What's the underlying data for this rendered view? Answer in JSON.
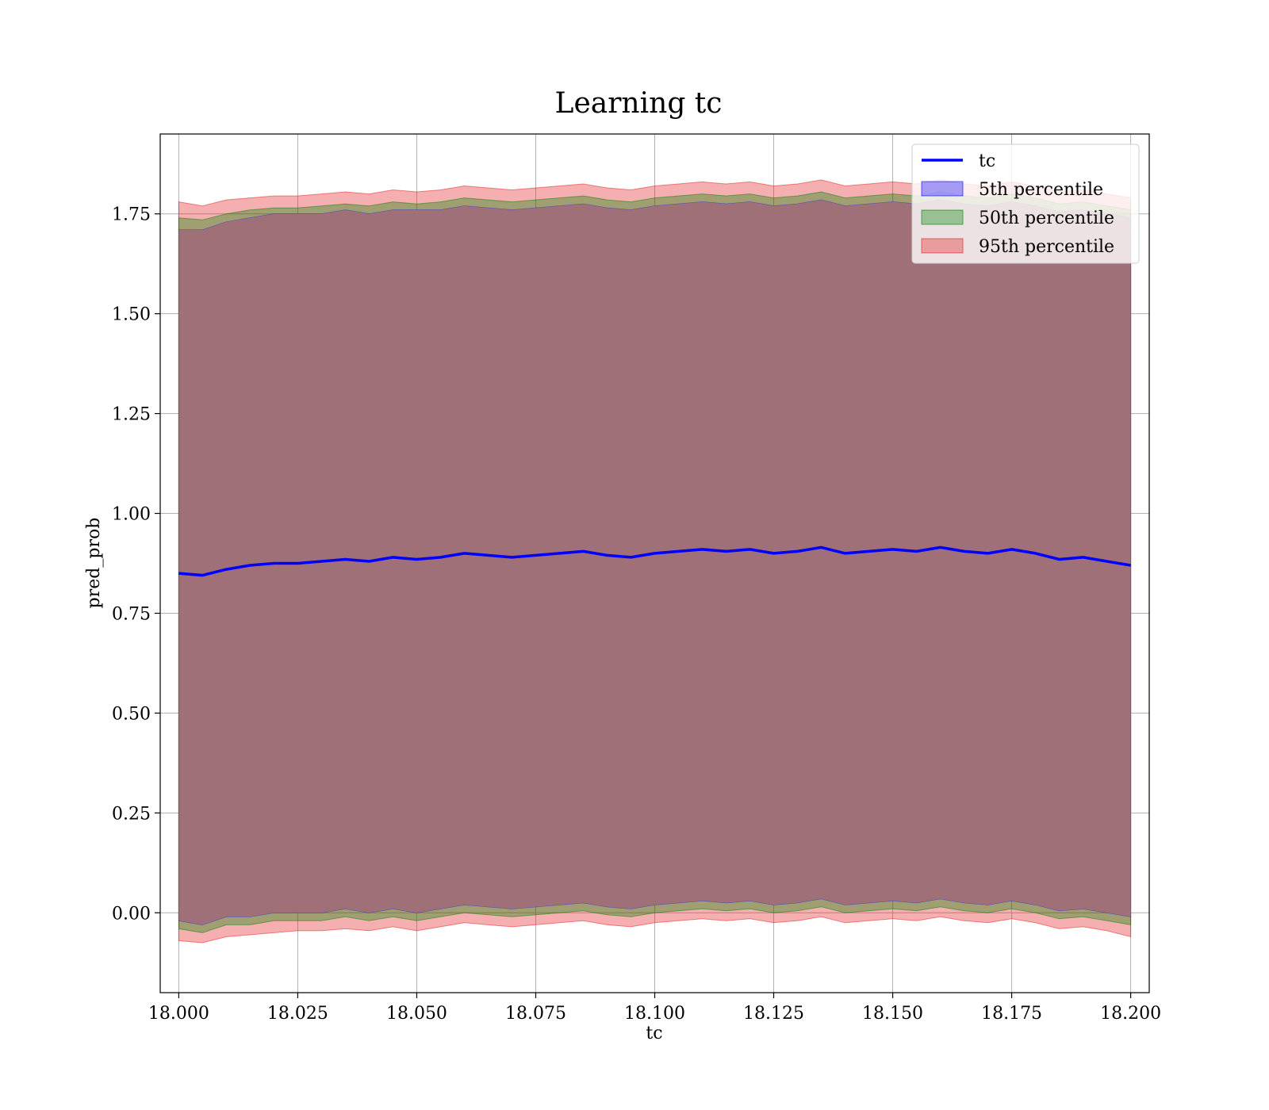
{
  "chart_data": {
    "type": "area",
    "title": "Learning tc",
    "xlabel": "tc",
    "ylabel": "pred_prob",
    "xlim": [
      17.9961,
      18.2039
    ],
    "ylim": [
      -0.2,
      1.95
    ],
    "x_ticks": [
      18.0,
      18.025,
      18.05,
      18.075,
      18.1,
      18.125,
      18.15,
      18.175,
      18.2
    ],
    "x_tick_labels": [
      "18.000",
      "18.025",
      "18.050",
      "18.075",
      "18.100",
      "18.125",
      "18.150",
      "18.175",
      "18.200"
    ],
    "y_ticks": [
      0.0,
      0.25,
      0.5,
      0.75,
      1.0,
      1.25,
      1.5,
      1.75
    ],
    "y_tick_labels": [
      "0.00",
      "0.25",
      "0.50",
      "0.75",
      "1.00",
      "1.25",
      "1.50",
      "1.75"
    ],
    "grid": true,
    "legend_position": "top-right",
    "x": [
      18.0,
      18.005,
      18.01,
      18.015,
      18.02,
      18.025,
      18.03,
      18.035,
      18.04,
      18.045,
      18.05,
      18.055,
      18.06,
      18.065,
      18.07,
      18.075,
      18.08,
      18.085,
      18.09,
      18.095,
      18.1,
      18.105,
      18.11,
      18.115,
      18.12,
      18.125,
      18.13,
      18.135,
      18.14,
      18.145,
      18.15,
      18.155,
      18.16,
      18.165,
      18.17,
      18.175,
      18.18,
      18.185,
      18.19,
      18.195,
      18.2
    ],
    "series": [
      {
        "name": "tc",
        "kind": "line",
        "color": "#0000ff",
        "values": [
          0.85,
          0.845,
          0.86,
          0.87,
          0.875,
          0.875,
          0.88,
          0.885,
          0.88,
          0.89,
          0.885,
          0.89,
          0.9,
          0.895,
          0.89,
          0.895,
          0.9,
          0.905,
          0.895,
          0.89,
          0.9,
          0.905,
          0.91,
          0.905,
          0.91,
          0.9,
          0.905,
          0.915,
          0.9,
          0.905,
          0.91,
          0.905,
          0.915,
          0.905,
          0.9,
          0.91,
          0.9,
          0.885,
          0.89,
          0.88,
          0.87
        ]
      },
      {
        "name": "5th percentile",
        "kind": "band",
        "color": "#0000ff",
        "lower": [
          -0.02,
          -0.03,
          -0.01,
          -0.01,
          0.0,
          0.0,
          0.0,
          0.01,
          0.0,
          0.01,
          0.0,
          0.01,
          0.02,
          0.015,
          0.01,
          0.015,
          0.02,
          0.025,
          0.015,
          0.01,
          0.02,
          0.025,
          0.03,
          0.025,
          0.03,
          0.02,
          0.025,
          0.035,
          0.02,
          0.025,
          0.03,
          0.025,
          0.035,
          0.025,
          0.02,
          0.03,
          0.02,
          0.005,
          0.01,
          0.0,
          -0.01
        ],
        "upper": [
          1.71,
          1.71,
          1.73,
          1.74,
          1.75,
          1.75,
          1.75,
          1.76,
          1.75,
          1.76,
          1.76,
          1.76,
          1.77,
          1.765,
          1.76,
          1.765,
          1.77,
          1.775,
          1.765,
          1.76,
          1.77,
          1.775,
          1.78,
          1.775,
          1.78,
          1.77,
          1.775,
          1.785,
          1.77,
          1.775,
          1.78,
          1.775,
          1.785,
          1.775,
          1.77,
          1.78,
          1.77,
          1.755,
          1.76,
          1.75,
          1.74
        ]
      },
      {
        "name": "50th percentile",
        "kind": "band",
        "color": "#008000",
        "lower": [
          -0.04,
          -0.05,
          -0.03,
          -0.03,
          -0.02,
          -0.02,
          -0.02,
          -0.01,
          -0.02,
          -0.01,
          -0.02,
          -0.01,
          0.0,
          -0.005,
          -0.01,
          -0.005,
          0.0,
          0.005,
          -0.005,
          -0.01,
          0.0,
          0.005,
          0.01,
          0.005,
          0.01,
          0.0,
          0.005,
          0.015,
          0.0,
          0.005,
          0.01,
          0.005,
          0.015,
          0.005,
          0.0,
          0.01,
          0.0,
          -0.015,
          -0.01,
          -0.02,
          -0.03
        ],
        "upper": [
          1.74,
          1.735,
          1.75,
          1.76,
          1.765,
          1.765,
          1.77,
          1.775,
          1.77,
          1.78,
          1.775,
          1.78,
          1.79,
          1.785,
          1.78,
          1.785,
          1.79,
          1.795,
          1.785,
          1.78,
          1.79,
          1.795,
          1.8,
          1.795,
          1.8,
          1.79,
          1.795,
          1.805,
          1.79,
          1.795,
          1.8,
          1.795,
          1.805,
          1.795,
          1.79,
          1.8,
          1.79,
          1.775,
          1.78,
          1.77,
          1.76
        ]
      },
      {
        "name": "95th percentile",
        "kind": "band",
        "color": "#e41a1c",
        "lower": [
          -0.07,
          -0.075,
          -0.06,
          -0.055,
          -0.05,
          -0.045,
          -0.045,
          -0.04,
          -0.045,
          -0.035,
          -0.045,
          -0.035,
          -0.025,
          -0.03,
          -0.035,
          -0.03,
          -0.025,
          -0.02,
          -0.03,
          -0.035,
          -0.025,
          -0.02,
          -0.015,
          -0.02,
          -0.015,
          -0.025,
          -0.02,
          -0.01,
          -0.025,
          -0.02,
          -0.015,
          -0.02,
          -0.01,
          -0.02,
          -0.025,
          -0.015,
          -0.025,
          -0.04,
          -0.035,
          -0.045,
          -0.06
        ],
        "upper": [
          1.78,
          1.77,
          1.785,
          1.79,
          1.795,
          1.795,
          1.8,
          1.805,
          1.8,
          1.81,
          1.805,
          1.81,
          1.82,
          1.815,
          1.81,
          1.815,
          1.82,
          1.825,
          1.815,
          1.81,
          1.82,
          1.825,
          1.83,
          1.825,
          1.83,
          1.82,
          1.825,
          1.835,
          1.82,
          1.825,
          1.83,
          1.825,
          1.835,
          1.825,
          1.82,
          1.83,
          1.82,
          1.805,
          1.81,
          1.8,
          1.79
        ]
      }
    ],
    "interior_fill_color": "#a07078"
  }
}
